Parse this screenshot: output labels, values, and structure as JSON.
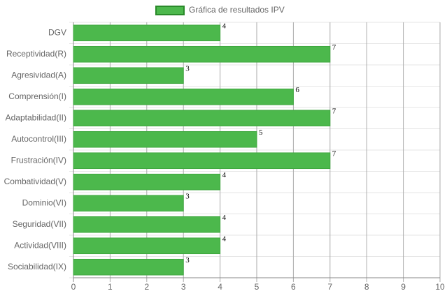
{
  "chart_data": {
    "type": "bar",
    "orientation": "horizontal",
    "legend": "Gráfica de resultados IPV",
    "categories": [
      "DGV",
      "Receptividad(R)",
      "Agresividad(A)",
      "Comprensión(I)",
      "Adaptabilidad(II)",
      "Autocontrol(III)",
      "Frustración(IV)",
      "Combatividad(V)",
      "Dominio(VI)",
      "Seguridad(VII)",
      "Actividad(VIII)",
      "Sociabilidad(IX)"
    ],
    "values": [
      4,
      7,
      3,
      6,
      7,
      5,
      7,
      4,
      3,
      4,
      4,
      3
    ],
    "color": "#4cb84c",
    "xlim": [
      0,
      10
    ],
    "xticks": [
      0,
      1,
      2,
      3,
      4,
      5,
      6,
      7,
      8,
      9,
      10
    ],
    "grid": true
  }
}
